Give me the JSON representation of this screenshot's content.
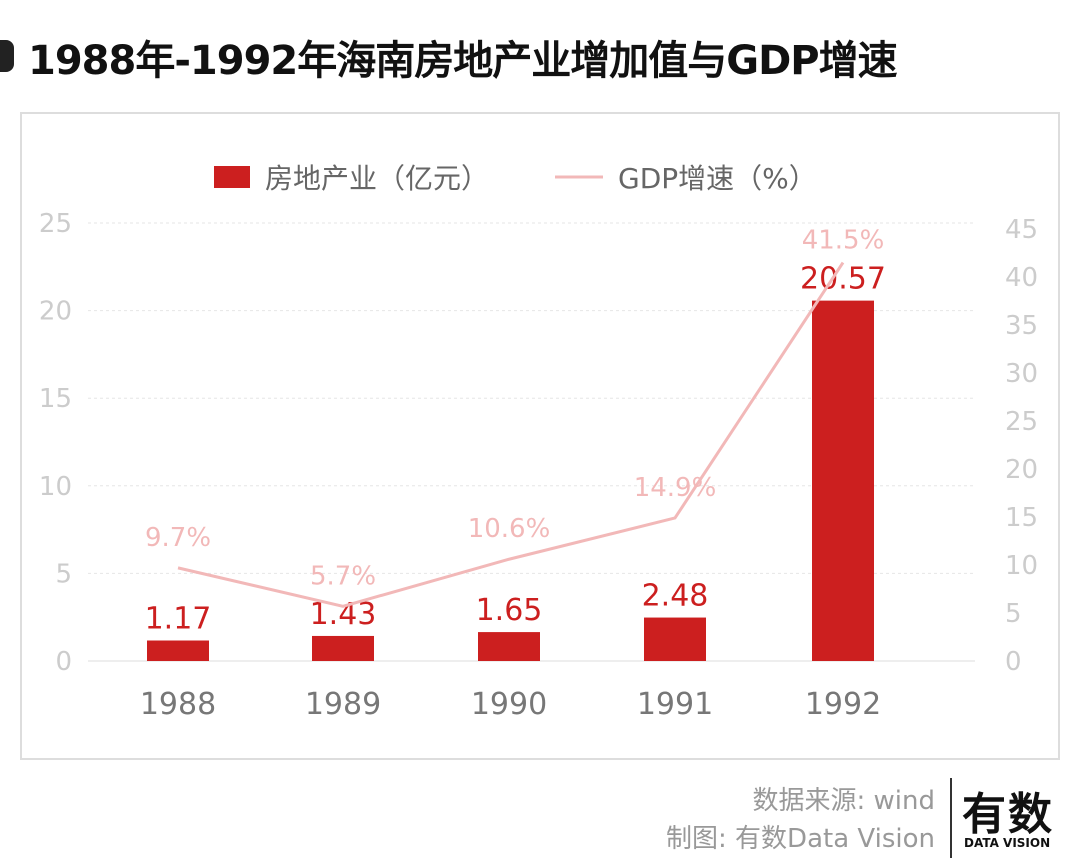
{
  "title": "1988年-1992年海南房地产业增加值与GDP增速",
  "chart_data": {
    "type": "bar+line",
    "title": "1988年-1992年海南房地产业增加值与GDP增速",
    "categories": [
      "1988",
      "1989",
      "1990",
      "1991",
      "1992"
    ],
    "series": [
      {
        "name": "房地产业（亿元）",
        "type": "bar",
        "axis": "left",
        "values": [
          1.17,
          1.43,
          1.65,
          2.48,
          20.57
        ],
        "labels": [
          "1.17",
          "1.43",
          "1.65",
          "2.48",
          "20.57"
        ],
        "color": "#cc1f1f"
      },
      {
        "name": "GDP增速（%）",
        "type": "line",
        "axis": "right",
        "values": [
          9.7,
          5.7,
          10.6,
          14.9,
          41.5
        ],
        "labels": [
          "9.7%",
          "5.7%",
          "10.6%",
          "14.9%",
          "41.5%"
        ],
        "color": "#f2b8b8"
      }
    ],
    "left_axis": {
      "range": [
        0,
        25
      ],
      "ticks": [
        "0",
        "5",
        "10",
        "15",
        "20",
        "25"
      ]
    },
    "right_axis": {
      "range": [
        0,
        45
      ],
      "ticks": [
        "0",
        "5",
        "10",
        "15",
        "20",
        "25",
        "30",
        "35",
        "40",
        "45"
      ]
    },
    "grid": true,
    "legend": "top-center"
  },
  "footer": {
    "source": "数据来源: wind",
    "credit": "制图: 有数Data Vision"
  },
  "logo": {
    "main": "有数",
    "sub": "DATA VISION"
  }
}
